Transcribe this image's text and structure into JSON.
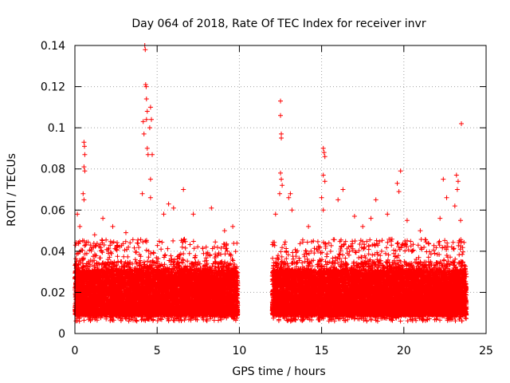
{
  "chart_data": {
    "type": "scatter",
    "title": "Day 064 of 2018, Rate Of TEC Index for receiver invr",
    "xlabel": "GPS time / hours",
    "ylabel": "ROTI / TECUs",
    "xlim": [
      0,
      25
    ],
    "ylim": [
      0,
      0.14
    ],
    "xticks": [
      0,
      5,
      10,
      15,
      20,
      25
    ],
    "xtick_labels": [
      "0",
      "5",
      "10",
      "15",
      "20",
      "25"
    ],
    "yticks": [
      0,
      0.02,
      0.04,
      0.06,
      0.08,
      0.1,
      0.12,
      0.14
    ],
    "ytick_labels": [
      "0",
      "0.02",
      "0.04",
      "0.06",
      "0.08",
      "0.1",
      "0.12",
      "0.14"
    ],
    "grid": true,
    "marker": "+",
    "series": [
      {
        "name": "ROTI",
        "color": "#ff0000",
        "dense_segments": [
          {
            "x_start": 0.0,
            "x_end": 9.9,
            "typical_low": 0.006,
            "typical_high": 0.035
          },
          {
            "x_start": 12.0,
            "x_end": 23.8,
            "typical_low": 0.006,
            "typical_high": 0.035
          }
        ],
        "notable_points": [
          {
            "x": 0.15,
            "y": 0.058
          },
          {
            "x": 0.3,
            "y": 0.052
          },
          {
            "x": 0.55,
            "y": 0.093
          },
          {
            "x": 0.58,
            "y": 0.091
          },
          {
            "x": 0.6,
            "y": 0.087
          },
          {
            "x": 0.55,
            "y": 0.081
          },
          {
            "x": 0.6,
            "y": 0.079
          },
          {
            "x": 0.5,
            "y": 0.068
          },
          {
            "x": 0.55,
            "y": 0.065
          },
          {
            "x": 1.2,
            "y": 0.048
          },
          {
            "x": 1.7,
            "y": 0.056
          },
          {
            "x": 2.3,
            "y": 0.052
          },
          {
            "x": 3.1,
            "y": 0.049
          },
          {
            "x": 4.15,
            "y": 0.103
          },
          {
            "x": 4.2,
            "y": 0.097
          },
          {
            "x": 4.25,
            "y": 0.14
          },
          {
            "x": 4.28,
            "y": 0.138
          },
          {
            "x": 4.3,
            "y": 0.121
          },
          {
            "x": 4.33,
            "y": 0.12
          },
          {
            "x": 4.35,
            "y": 0.114
          },
          {
            "x": 4.4,
            "y": 0.108
          },
          {
            "x": 4.35,
            "y": 0.104
          },
          {
            "x": 4.4,
            "y": 0.09
          },
          {
            "x": 4.45,
            "y": 0.087
          },
          {
            "x": 4.6,
            "y": 0.11
          },
          {
            "x": 4.65,
            "y": 0.104
          },
          {
            "x": 4.55,
            "y": 0.1
          },
          {
            "x": 4.7,
            "y": 0.087
          },
          {
            "x": 4.6,
            "y": 0.075
          },
          {
            "x": 4.1,
            "y": 0.068
          },
          {
            "x": 4.6,
            "y": 0.066
          },
          {
            "x": 5.4,
            "y": 0.058
          },
          {
            "x": 5.7,
            "y": 0.063
          },
          {
            "x": 6.0,
            "y": 0.061
          },
          {
            "x": 6.6,
            "y": 0.07
          },
          {
            "x": 7.2,
            "y": 0.058
          },
          {
            "x": 8.3,
            "y": 0.061
          },
          {
            "x": 9.1,
            "y": 0.05
          },
          {
            "x": 9.6,
            "y": 0.052
          },
          {
            "x": 12.5,
            "y": 0.113
          },
          {
            "x": 12.5,
            "y": 0.106
          },
          {
            "x": 12.55,
            "y": 0.097
          },
          {
            "x": 12.55,
            "y": 0.095
          },
          {
            "x": 12.5,
            "y": 0.078
          },
          {
            "x": 12.55,
            "y": 0.075
          },
          {
            "x": 12.6,
            "y": 0.072
          },
          {
            "x": 12.45,
            "y": 0.068
          },
          {
            "x": 12.2,
            "y": 0.058
          },
          {
            "x": 13.0,
            "y": 0.066
          },
          {
            "x": 13.1,
            "y": 0.068
          },
          {
            "x": 13.2,
            "y": 0.06
          },
          {
            "x": 14.2,
            "y": 0.052
          },
          {
            "x": 15.1,
            "y": 0.09
          },
          {
            "x": 15.15,
            "y": 0.088
          },
          {
            "x": 15.2,
            "y": 0.086
          },
          {
            "x": 15.1,
            "y": 0.077
          },
          {
            "x": 15.2,
            "y": 0.074
          },
          {
            "x": 15.0,
            "y": 0.066
          },
          {
            "x": 15.1,
            "y": 0.06
          },
          {
            "x": 16.0,
            "y": 0.065
          },
          {
            "x": 16.3,
            "y": 0.07
          },
          {
            "x": 17.0,
            "y": 0.057
          },
          {
            "x": 17.5,
            "y": 0.052
          },
          {
            "x": 18.0,
            "y": 0.056
          },
          {
            "x": 18.3,
            "y": 0.065
          },
          {
            "x": 19.0,
            "y": 0.058
          },
          {
            "x": 19.6,
            "y": 0.073
          },
          {
            "x": 19.7,
            "y": 0.069
          },
          {
            "x": 19.8,
            "y": 0.079
          },
          {
            "x": 20.2,
            "y": 0.055
          },
          {
            "x": 21.0,
            "y": 0.05
          },
          {
            "x": 22.2,
            "y": 0.056
          },
          {
            "x": 22.4,
            "y": 0.075
          },
          {
            "x": 22.6,
            "y": 0.066
          },
          {
            "x": 23.2,
            "y": 0.077
          },
          {
            "x": 23.3,
            "y": 0.074
          },
          {
            "x": 23.25,
            "y": 0.07
          },
          {
            "x": 23.1,
            "y": 0.062
          },
          {
            "x": 23.5,
            "y": 0.102
          },
          {
            "x": 23.45,
            "y": 0.055
          }
        ]
      }
    ]
  }
}
